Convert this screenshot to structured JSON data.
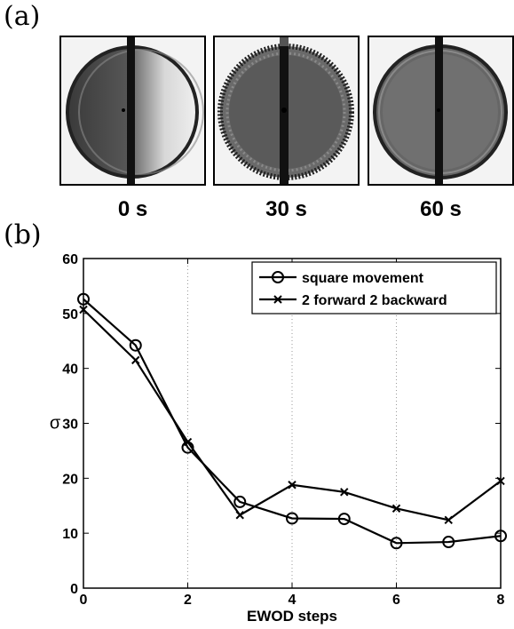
{
  "panel_labels": {
    "a": "(a)",
    "b": "(b)"
  },
  "images": [
    {
      "caption": "0 s"
    },
    {
      "caption": "30 s"
    },
    {
      "caption": "60 s"
    }
  ],
  "chart_data": {
    "type": "line",
    "xlabel": "EWOD steps",
    "ylabel": "σ",
    "xlim": [
      0,
      8
    ],
    "ylim": [
      0,
      60
    ],
    "xticks": [
      0,
      2,
      4,
      6,
      8
    ],
    "yticks": [
      0,
      10,
      20,
      30,
      40,
      50,
      60
    ],
    "grid": "vertical dotted",
    "legend_position": "top-right",
    "series": [
      {
        "name": "square movement",
        "marker": "circle",
        "x": [
          0,
          1,
          2,
          3,
          4,
          5,
          6,
          7,
          8
        ],
        "values": [
          52.6,
          44.2,
          25.6,
          15.7,
          12.7,
          12.6,
          8.2,
          8.4,
          9.5
        ]
      },
      {
        "name": "2 forward 2 backward",
        "marker": "x",
        "x": [
          0,
          1,
          2,
          3,
          4,
          5,
          6,
          7,
          8
        ],
        "values": [
          50.7,
          41.5,
          26.6,
          13.3,
          18.8,
          17.5,
          14.5,
          12.4,
          19.5
        ]
      }
    ],
    "colors": {
      "line": "#000000",
      "grid": "#9a9a9a"
    }
  }
}
